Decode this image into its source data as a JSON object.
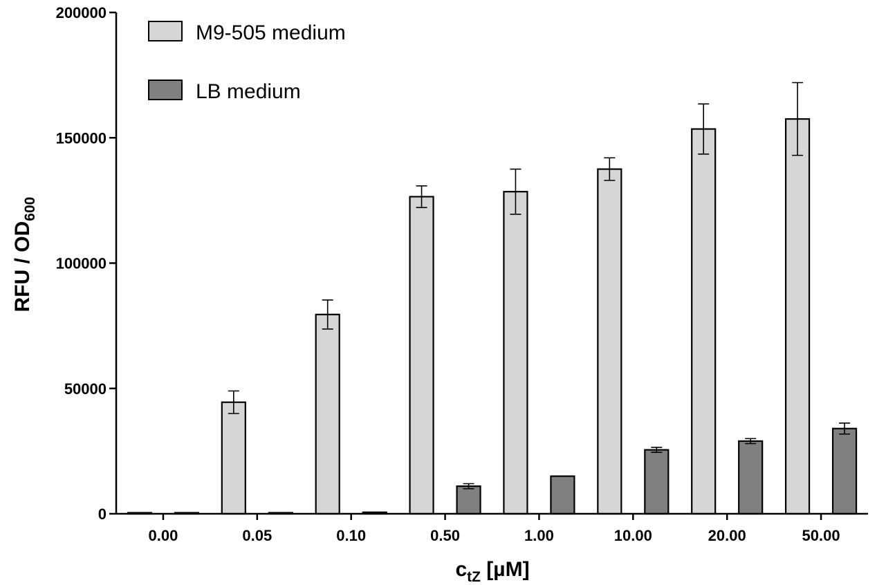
{
  "chart_data": {
    "type": "bar",
    "categories": [
      "0.00",
      "0.05",
      "0.10",
      "0.50",
      "1.00",
      "10.00",
      "20.00",
      "50.00"
    ],
    "series": [
      {
        "name": "M9-505 medium",
        "color": "#d6d6d6",
        "values": [
          0,
          44500,
          79500,
          126500,
          128500,
          137500,
          153500,
          157500
        ],
        "errors": [
          0,
          4500,
          5800,
          4300,
          9000,
          4500,
          10000,
          14500
        ]
      },
      {
        "name": "LB medium",
        "color": "#808080",
        "values": [
          300,
          300,
          600,
          11000,
          15000,
          25500,
          29000,
          34000
        ],
        "errors": [
          0,
          0,
          0,
          1000,
          0,
          1000,
          1000,
          2200
        ]
      }
    ],
    "ylim": [
      0,
      200000
    ],
    "yticks": [
      0,
      50000,
      100000,
      150000,
      200000
    ],
    "ylabel": {
      "main": "RFU / OD",
      "sub": "600"
    },
    "xlabel": {
      "main": "c",
      "sub": "tZ",
      "unit": "[µM]"
    },
    "legend_position": "top-left",
    "grid": false
  }
}
